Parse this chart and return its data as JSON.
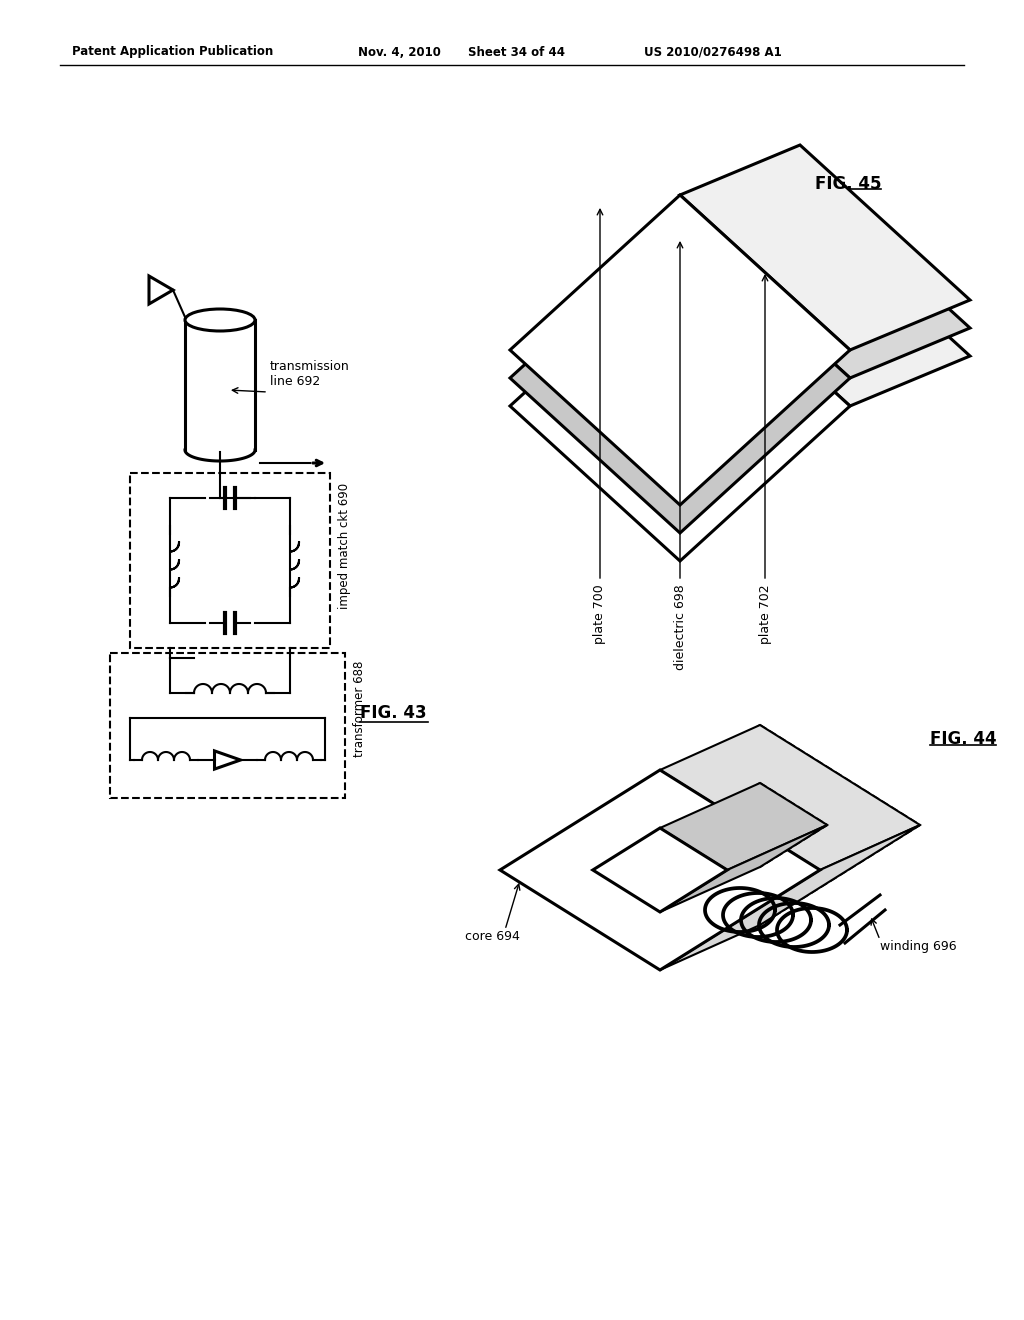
{
  "bg_color": "#ffffff",
  "header_left": "Patent Application Publication",
  "header_center": "Nov. 4, 2010",
  "header_right_sheet": "Sheet 34 of 44",
  "header_right_pub": "US 2010/0276498 A1",
  "fig43_label": "FIG. 43",
  "fig44_label": "FIG. 44",
  "fig45_label": "FIG. 45",
  "label_692": "transmission\nline 692",
  "label_690": "imped match ckt 690",
  "label_688": "transformer 688",
  "label_694": "core 694",
  "label_696": "winding 696",
  "label_700": "plate 700",
  "label_698": "dielectric 698",
  "label_702": "plate 702"
}
